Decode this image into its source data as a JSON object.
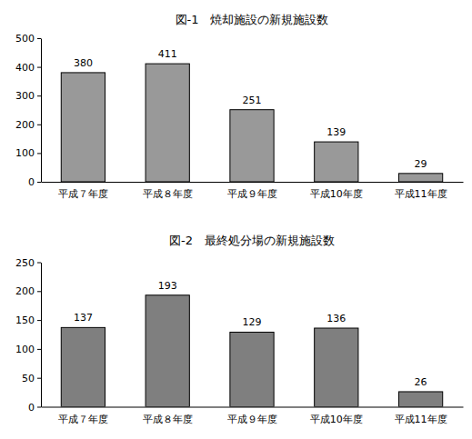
{
  "chart_data": [
    {
      "type": "bar",
      "title": "図-1　焼却施設の新規施設数",
      "categories": [
        "平成７年度",
        "平成８年度",
        "平成９年度",
        "平成10年度",
        "平成11年度"
      ],
      "values": [
        380,
        411,
        251,
        139,
        29
      ],
      "color": "#999999",
      "ylim": [
        0,
        500
      ],
      "yticks": [
        0,
        100,
        200,
        300,
        400,
        500
      ],
      "grid": false,
      "data_labels": true
    },
    {
      "type": "bar",
      "title": "図-2　最終処分場の新規施設数",
      "categories": [
        "平成７年度",
        "平成８年度",
        "平成９年度",
        "平成10年度",
        "平成11年度"
      ],
      "values": [
        137,
        193,
        129,
        136,
        26
      ],
      "color": "#7f7f7f",
      "ylim": [
        0,
        250
      ],
      "yticks": [
        0,
        50,
        100,
        150,
        200,
        250
      ],
      "grid": false,
      "data_labels": true
    }
  ]
}
